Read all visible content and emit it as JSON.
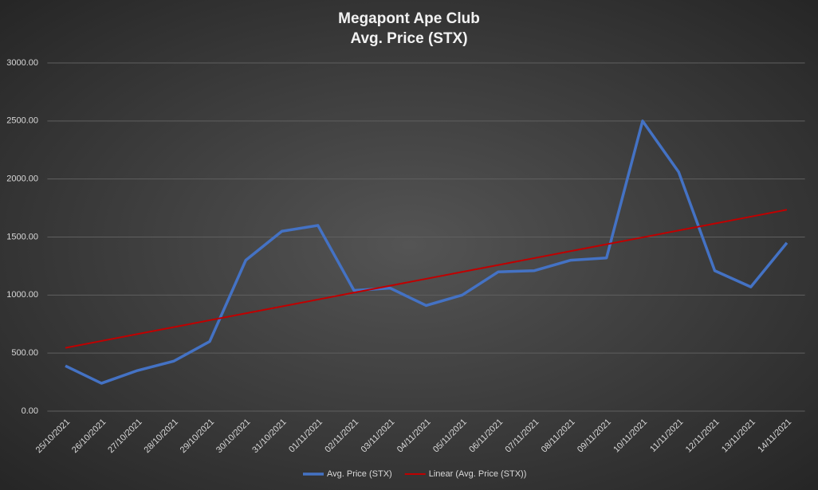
{
  "chart_data": {
    "type": "line",
    "title": "Megapont Ape Club",
    "subtitle": "Avg. Price (STX)",
    "categories": [
      "25/10/2021",
      "26/10/2021",
      "27/10/2021",
      "28/10/2021",
      "29/10/2021",
      "30/10/2021",
      "31/10/2021",
      "01/11/2021",
      "02/11/2021",
      "03/11/2021",
      "04/11/2021",
      "05/11/2021",
      "06/11/2021",
      "07/11/2021",
      "08/11/2021",
      "09/11/2021",
      "10/11/2021",
      "11/11/2021",
      "12/11/2021",
      "13/11/2021",
      "14/11/2021"
    ],
    "series": [
      {
        "name": "Avg. Price (STX)",
        "color": "#4472c4",
        "values": [
          390,
          240,
          350,
          430,
          600,
          1300,
          1550,
          1600,
          1040,
          1060,
          910,
          1000,
          1200,
          1210,
          1300,
          1320,
          2500,
          2060,
          1210,
          1070,
          1450
        ]
      },
      {
        "name": "Linear (Avg. Price (STX))",
        "color": "#c00000",
        "values": [
          545,
          604.5,
          664,
          723.5,
          783,
          842.5,
          902,
          961.5,
          1021,
          1080.5,
          1140,
          1199.5,
          1259,
          1318.5,
          1378,
          1437.5,
          1497,
          1556.5,
          1616,
          1675.5,
          1735
        ]
      }
    ],
    "ylim": [
      0,
      3000
    ],
    "yticks": [
      {
        "value": 0,
        "label": "0.00"
      },
      {
        "value": 500,
        "label": "500.00"
      },
      {
        "value": 1000,
        "label": "1000.00"
      },
      {
        "value": 1500,
        "label": "1500.00"
      },
      {
        "value": 2000,
        "label": "2000.00"
      },
      {
        "value": 2500,
        "label": "2500.00"
      },
      {
        "value": 3000,
        "label": "3000.00"
      }
    ],
    "grid": true,
    "legend": "bottom"
  }
}
